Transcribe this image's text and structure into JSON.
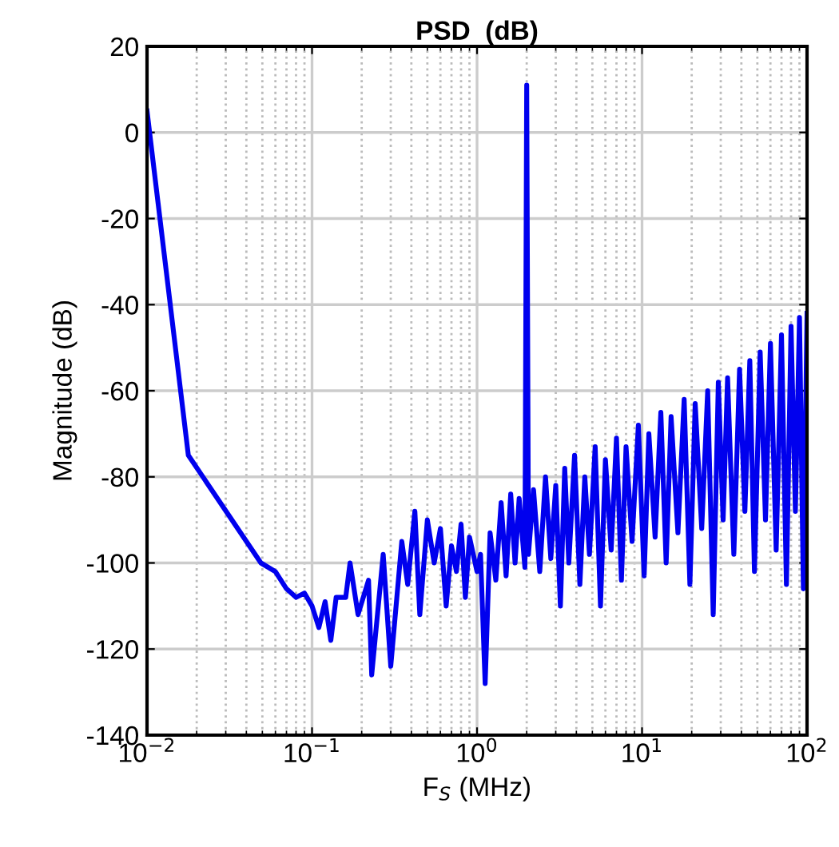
{
  "chart_data": {
    "type": "line",
    "title": "PSD  (dB)",
    "xlabel": "F$_{S}$ (MHz)",
    "ylabel": "Magnitude (dB)",
    "log": "x",
    "grid": true,
    "marker": "none",
    "line_style": "solid",
    "xlim": [
      0.01,
      100
    ],
    "xticks": [
      {
        "value": 0.01,
        "label": "10$^{−2}$"
      },
      {
        "value": 0.1,
        "label": "10$^{−1}$"
      },
      {
        "value": 1,
        "label": "10$^{0}$"
      },
      {
        "value": 10,
        "label": "10$^{1}$"
      },
      {
        "value": 100,
        "label": "10$^{2}$"
      }
    ],
    "ylim": [
      -140,
      20
    ],
    "yticks": [
      -140,
      -120,
      -100,
      -80,
      -60,
      -40,
      -20,
      0,
      20
    ],
    "series": [
      {
        "color": "#0000ee",
        "x": [
          0.01,
          0.0178,
          0.049,
          0.06,
          0.07,
          0.08,
          0.09,
          0.1,
          0.11,
          0.12,
          0.13,
          0.14,
          0.16,
          0.17,
          0.19,
          0.22,
          0.23,
          0.27,
          0.3,
          0.35,
          0.38,
          0.42,
          0.45,
          0.5,
          0.55,
          0.6,
          0.65,
          0.7,
          0.75,
          0.8,
          0.85,
          0.9,
          1.0,
          1.05,
          1.12,
          1.2,
          1.3,
          1.4,
          1.5,
          1.6,
          1.7,
          1.8,
          1.95,
          2.0,
          2.05,
          2.2,
          2.4,
          2.6,
          2.8,
          3.0,
          3.2,
          3.4,
          3.6,
          3.9,
          4.2,
          4.5,
          4.8,
          5.2,
          5.6,
          6.0,
          6.5,
          7.0,
          7.5,
          8.0,
          8.7,
          9.5,
          10.3,
          11,
          12,
          13,
          14,
          15,
          16.5,
          18,
          19.5,
          21,
          23,
          25,
          27,
          29,
          31,
          33,
          36,
          39,
          42,
          45,
          48,
          52,
          56,
          60,
          65,
          70,
          75,
          80,
          85,
          90,
          95,
          100
        ],
        "values": [
          5,
          -75,
          -100,
          -102,
          -106,
          -108,
          -107,
          -110,
          -115,
          -109,
          -118,
          -108,
          -108,
          -100,
          -112,
          -104,
          -126,
          -98,
          -124,
          -95,
          -105,
          -88,
          -112,
          -90,
          -100,
          -92,
          -110,
          -96,
          -102,
          -91,
          -108,
          -94,
          -102,
          -98,
          -128,
          -93,
          -104,
          -86,
          -103,
          -84,
          -100,
          -85,
          -101,
          11,
          -98,
          -83,
          -102,
          -80,
          -99,
          -82,
          -110,
          -78,
          -100,
          -75,
          -105,
          -80,
          -98,
          -73,
          -110,
          -76,
          -97,
          -71,
          -104,
          -73,
          -95,
          -68,
          -103,
          -70,
          -94,
          -65,
          -100,
          -66,
          -93,
          -62,
          -105,
          -63,
          -92,
          -60,
          -112,
          -58,
          -90,
          -57,
          -98,
          -55,
          -88,
          -53,
          -102,
          -51,
          -90,
          -49,
          -97,
          -47,
          -105,
          -45,
          -88,
          -43,
          -106,
          -42
        ]
      }
    ]
  }
}
